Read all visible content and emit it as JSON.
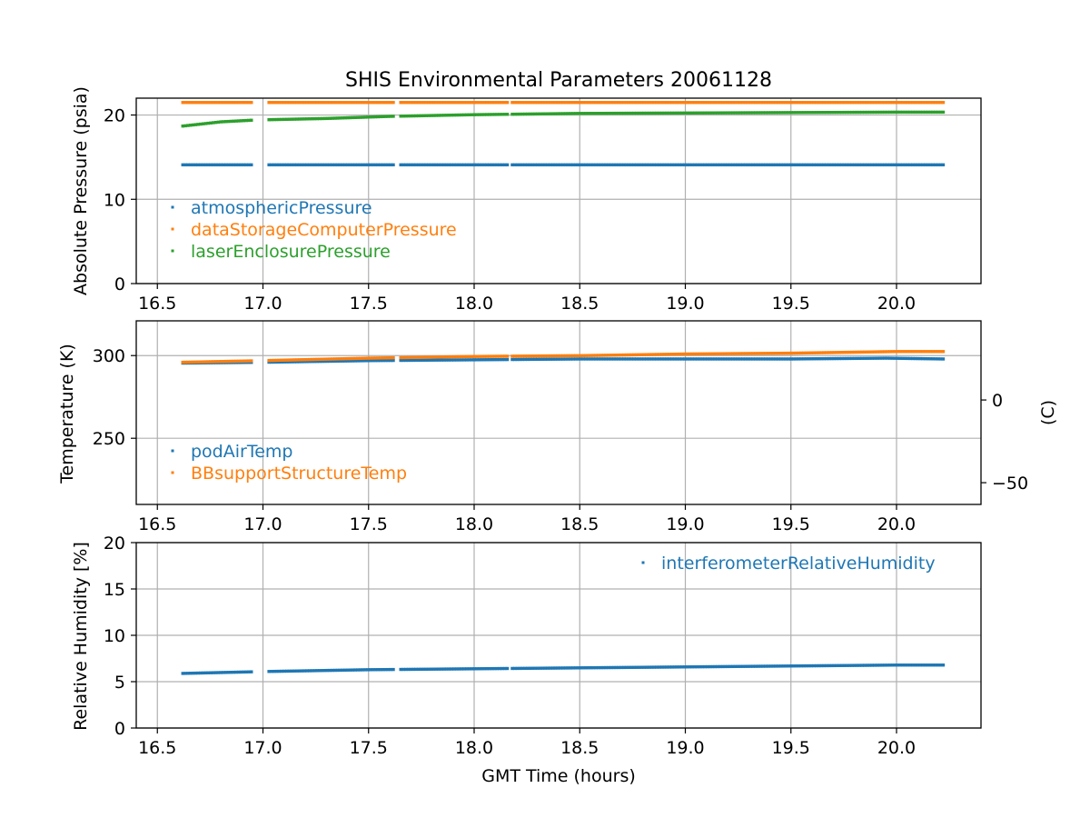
{
  "figure": {
    "title": "SHIS Environmental Parameters 20061128",
    "xlabel": "GMT Time (hours)"
  },
  "colors": {
    "blue": "#1f77b4",
    "orange": "#ff7f0e",
    "green": "#2ca02c",
    "grid": "#b0b0b0",
    "axis": "#000000"
  },
  "chart_data": [
    {
      "type": "scatter",
      "title": "SHIS Environmental Parameters 20061128",
      "xlabel": "",
      "ylabel": "Absolute Pressure (psia)",
      "xlim": [
        16.4,
        20.4
      ],
      "ylim": [
        0,
        22
      ],
      "xticks": [
        16.5,
        17.0,
        17.5,
        18.0,
        18.5,
        19.0,
        19.5,
        20.0
      ],
      "yticks": [
        0,
        10,
        20
      ],
      "grid": true,
      "legend_position": "lower-left",
      "gaps": [
        [
          16.95,
          17.02
        ],
        [
          17.62,
          17.65
        ],
        [
          18.16,
          18.18
        ]
      ],
      "series": [
        {
          "name": "atmosphericPressure",
          "color": "blue",
          "x": [
            16.62,
            20.22
          ],
          "y": [
            14.1,
            14.1
          ]
        },
        {
          "name": "dataStorageComputerPressure",
          "color": "orange",
          "x": [
            16.62,
            20.22
          ],
          "y": [
            21.5,
            21.5
          ]
        },
        {
          "name": "laserEnclosurePressure",
          "color": "green",
          "x": [
            16.62,
            16.8,
            16.95,
            17.02,
            17.3,
            17.6,
            18.0,
            18.5,
            19.0,
            19.5,
            20.0,
            20.22
          ],
          "y": [
            18.7,
            19.2,
            19.4,
            19.45,
            19.6,
            19.85,
            20.05,
            20.2,
            20.25,
            20.3,
            20.35,
            20.35
          ]
        }
      ]
    },
    {
      "type": "scatter",
      "xlabel": "",
      "ylabel": "Temperature (K)",
      "ylabel_right": "(C)",
      "xlim": [
        16.4,
        20.4
      ],
      "ylim": [
        210,
        321
      ],
      "xticks": [
        16.5,
        17.0,
        17.5,
        18.0,
        18.5,
        19.0,
        19.5,
        20.0
      ],
      "yticks": [
        250,
        300
      ],
      "yticks_right": [
        0,
        -50
      ],
      "grid": true,
      "legend_position": "lower-left",
      "gaps": [
        [
          16.95,
          17.02
        ],
        [
          17.62,
          17.65
        ],
        [
          18.16,
          18.18
        ]
      ],
      "series": [
        {
          "name": "podAirTemp",
          "color": "blue",
          "x": [
            16.62,
            17.0,
            17.5,
            18.0,
            18.5,
            19.0,
            19.5,
            19.95,
            20.22
          ],
          "y": [
            295.5,
            296.0,
            297.0,
            297.5,
            298.0,
            298.0,
            298.0,
            298.5,
            298.0
          ]
        },
        {
          "name": "BBsupportStructureTemp",
          "color": "orange",
          "x": [
            16.62,
            17.0,
            17.5,
            18.0,
            18.5,
            19.0,
            19.5,
            20.0,
            20.22
          ],
          "y": [
            296.0,
            297.0,
            298.5,
            299.5,
            300.0,
            301.0,
            301.5,
            302.5,
            302.5
          ]
        }
      ]
    },
    {
      "type": "scatter",
      "xlabel": "GMT Time (hours)",
      "ylabel": "Relative Humidity [%]",
      "xlim": [
        16.4,
        20.4
      ],
      "ylim": [
        0,
        20
      ],
      "xticks": [
        16.5,
        17.0,
        17.5,
        18.0,
        18.5,
        19.0,
        19.5,
        20.0
      ],
      "yticks": [
        0,
        5,
        10,
        15,
        20
      ],
      "grid": true,
      "legend_position": "upper-right",
      "gaps": [
        [
          16.95,
          17.02
        ],
        [
          17.62,
          17.65
        ],
        [
          18.16,
          18.18
        ]
      ],
      "series": [
        {
          "name": "interferometerRelativeHumidity",
          "color": "blue",
          "x": [
            16.62,
            17.0,
            17.5,
            18.0,
            18.5,
            19.0,
            19.5,
            20.0,
            20.22
          ],
          "y": [
            5.9,
            6.1,
            6.3,
            6.4,
            6.5,
            6.6,
            6.7,
            6.8,
            6.8
          ]
        }
      ]
    }
  ]
}
